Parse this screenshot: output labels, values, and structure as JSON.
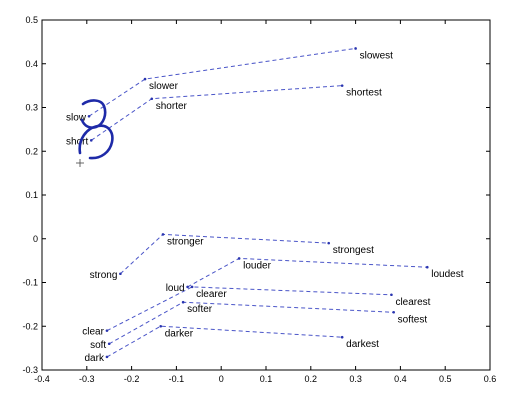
{
  "chart_data": {
    "type": "line",
    "title": "",
    "xlabel": "",
    "ylabel": "",
    "xlim": [
      -0.4,
      0.6
    ],
    "ylim": [
      -0.3,
      0.5
    ],
    "x_ticks": [
      "-0.4",
      "-0.3",
      "-0.2",
      "-0.1",
      "0",
      "0.1",
      "0.2",
      "0.3",
      "0.4",
      "0.5",
      "0.6"
    ],
    "y_ticks": [
      "-0.3",
      "-0.2",
      "-0.1",
      "0",
      "0.1",
      "0.2",
      "0.3",
      "0.4",
      "0.5"
    ],
    "grid": false,
    "legend": "none",
    "line_color": "#4a55c8",
    "series": [
      {
        "points": [
          {
            "word": "slow",
            "x": -0.295,
            "y": 0.28
          },
          {
            "word": "slower",
            "x": -0.17,
            "y": 0.365
          },
          {
            "word": "slowest",
            "x": 0.3,
            "y": 0.435
          }
        ]
      },
      {
        "points": [
          {
            "word": "short",
            "x": -0.29,
            "y": 0.225
          },
          {
            "word": "shorter",
            "x": -0.155,
            "y": 0.32
          },
          {
            "word": "shortest",
            "x": 0.27,
            "y": 0.35
          }
        ]
      },
      {
        "points": [
          {
            "word": "strong",
            "x": -0.225,
            "y": -0.08
          },
          {
            "word": "stronger",
            "x": -0.13,
            "y": 0.01
          },
          {
            "word": "strongest",
            "x": 0.24,
            "y": -0.01
          }
        ]
      },
      {
        "points": [
          {
            "word": "loud",
            "x": -0.075,
            "y": -0.11
          },
          {
            "word": "louder",
            "x": 0.04,
            "y": -0.045
          },
          {
            "word": "loudest",
            "x": 0.46,
            "y": -0.065
          }
        ]
      },
      {
        "points": [
          {
            "word": "clear",
            "x": -0.255,
            "y": -0.21
          },
          {
            "word": "clearer",
            "x": -0.065,
            "y": -0.11
          },
          {
            "word": "clearest",
            "x": 0.38,
            "y": -0.128
          }
        ]
      },
      {
        "points": [
          {
            "word": "soft",
            "x": -0.25,
            "y": -0.24
          },
          {
            "word": "softer",
            "x": -0.085,
            "y": -0.145
          },
          {
            "word": "softest",
            "x": 0.385,
            "y": -0.168
          }
        ]
      },
      {
        "points": [
          {
            "word": "dark",
            "x": -0.255,
            "y": -0.27
          },
          {
            "word": "darker",
            "x": -0.135,
            "y": -0.2
          },
          {
            "word": "darkest",
            "x": 0.27,
            "y": -0.225
          }
        ]
      }
    ]
  }
}
